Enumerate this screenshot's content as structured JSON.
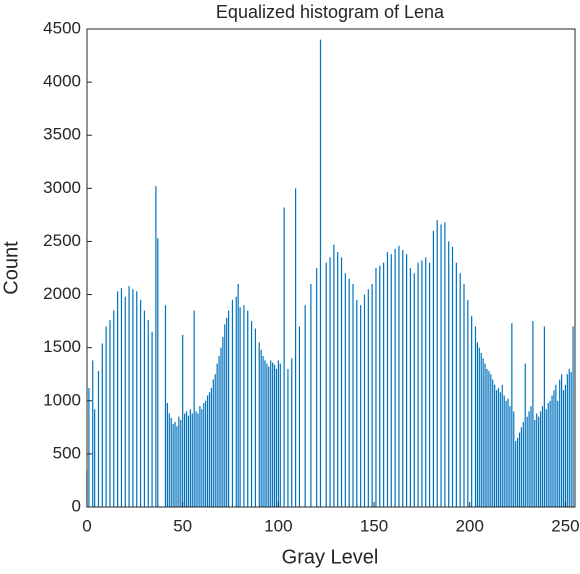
{
  "chart_data": {
    "type": "bar",
    "title": "Equalized histogram of Lena",
    "x_label": "Gray Level",
    "y_label": "Count",
    "color": "#0072bd",
    "xlim": [
      0,
      255
    ],
    "xticks": [
      0,
      50,
      100,
      150,
      200,
      250
    ],
    "ylim": [
      0,
      4500
    ],
    "yticks": [
      0,
      500,
      1000,
      1500,
      2000,
      2500,
      3000,
      3500,
      4000,
      4500
    ],
    "values": [
      350,
      1120,
      0,
      1380,
      920,
      0,
      1280,
      0,
      1540,
      0,
      1700,
      0,
      1760,
      0,
      1850,
      0,
      2030,
      0,
      2060,
      0,
      1980,
      0,
      2080,
      0,
      2050,
      0,
      2030,
      0,
      1950,
      0,
      1850,
      0,
      1760,
      0,
      1650,
      0,
      3020,
      2530,
      0,
      0,
      0,
      1900,
      980,
      880,
      840,
      780,
      800,
      760,
      850,
      820,
      1620,
      880,
      900,
      860,
      920,
      880,
      1850,
      900,
      880,
      950,
      920,
      980,
      1000,
      1050,
      1080,
      1120,
      1200,
      1250,
      1350,
      1420,
      1500,
      1600,
      1720,
      1780,
      1850,
      0,
      1950,
      0,
      1980,
      2100,
      1880,
      0,
      1900,
      0,
      1850,
      0,
      1750,
      0,
      1680,
      0,
      1550,
      1480,
      1420,
      1380,
      1350,
      1320,
      1380,
      1360,
      1340,
      1300,
      1380,
      1350,
      0,
      2820,
      0,
      1300,
      0,
      1400,
      0,
      3000,
      0,
      1700,
      0,
      0,
      1900,
      0,
      0,
      2100,
      0,
      0,
      2250,
      0,
      4400,
      0,
      0,
      2300,
      0,
      2350,
      0,
      2470,
      0,
      2400,
      0,
      2350,
      0,
      2200,
      0,
      2150,
      0,
      2100,
      0,
      1950,
      0,
      1900,
      0,
      2000,
      0,
      2050,
      0,
      2100,
      0,
      2250,
      0,
      2270,
      0,
      2300,
      0,
      2400,
      0,
      2380,
      0,
      2430,
      0,
      2460,
      0,
      2420,
      0,
      2380,
      0,
      2250,
      0,
      2200,
      0,
      2300,
      0,
      2320,
      0,
      2350,
      0,
      2300,
      0,
      2600,
      0,
      2700,
      0,
      2660,
      0,
      2680,
      0,
      2500,
      0,
      2450,
      0,
      2300,
      0,
      2200,
      0,
      2100,
      0,
      1950,
      0,
      1800,
      0,
      1700,
      1550,
      1500,
      1450,
      1400,
      1350,
      1300,
      1280,
      1250,
      1200,
      1150,
      1100,
      1120,
      1080,
      1150,
      1050,
      1000,
      1020,
      950,
      1730,
      900,
      620,
      650,
      700,
      750,
      800,
      1350,
      850,
      900,
      950,
      1750,
      820,
      880,
      850,
      900,
      950,
      1700,
      920,
      980,
      1000,
      1050,
      1100,
      1150,
      1000,
      1200,
      1250,
      1100,
      1150,
      1250,
      1300,
      1270,
      1700,
      0
    ]
  }
}
